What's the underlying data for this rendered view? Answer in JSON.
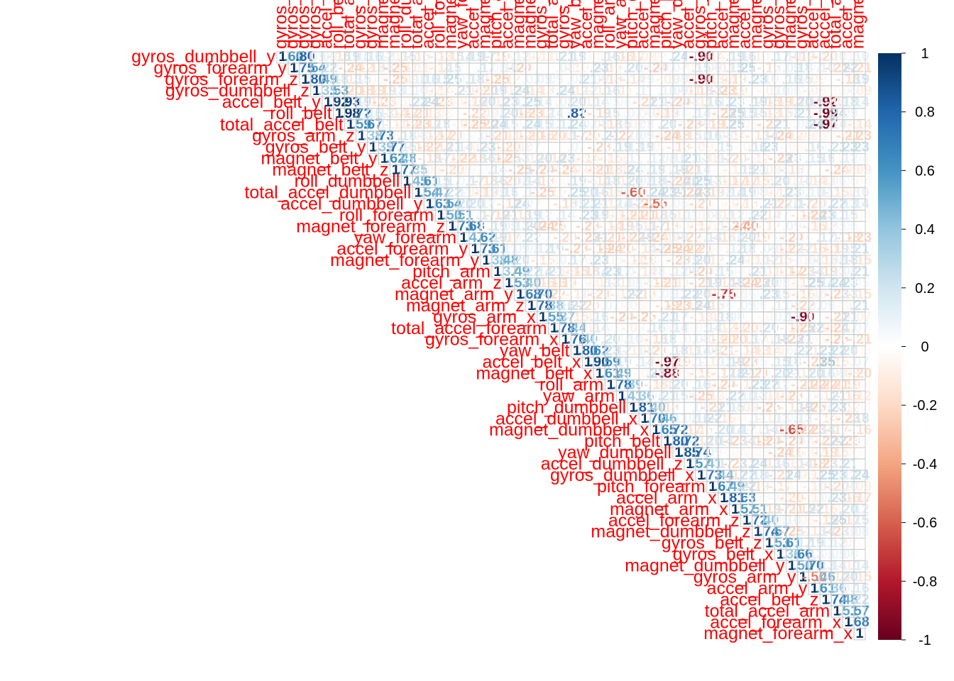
{
  "chart_data": {
    "type": "heatmap",
    "layout": "upper-triangle",
    "title": "",
    "xlabel": "",
    "ylabel": "",
    "legend": {
      "placement": "right",
      "ticks": [
        "1",
        "0.8",
        "0.6",
        "0.4",
        "0.2",
        "0",
        "-0.2",
        "-0.4",
        "-0.6",
        "-0.8",
        "-1"
      ]
    },
    "color_scale": {
      "min": -1,
      "max": 1,
      "low": "#67001f",
      "mid": "#ffffff",
      "high": "#053061"
    },
    "variables": [
      "gyros_dumbbell_y",
      "gyros_forearm_y",
      "gyros_forearm_z",
      "gyros_dumbbell_z",
      "accel_belt_y",
      "roll_belt",
      "total_accel_belt",
      "gyros_arm_z",
      "gyros_belt_y",
      "magnet_belt_y",
      "magnet_belt_z",
      "roll_dumbbell",
      "total_accel_dumbbell",
      "accel_dumbbell_y",
      "roll_forearm",
      "magnet_forearm_z",
      "yaw_forearm",
      "accel_forearm_y",
      "magnet_forearm_y",
      "pitch_arm",
      "accel_arm_z",
      "magnet_arm_y",
      "magnet_arm_z",
      "gyros_arm_x",
      "total_accel_forearm",
      "gyros_forearm_x",
      "yaw_belt",
      "accel_belt_x",
      "magnet_belt_x",
      "roll_arm",
      "yaw_arm",
      "pitch_dumbbell",
      "accel_dumbbell_x",
      "magnet_dumbbell_x",
      "pitch_belt",
      "yaw_dumbbell",
      "accel_dumbbell_z",
      "gyros_dumbbell_x",
      "pitch_forearm",
      "accel_arm_x",
      "magnet_arm_x",
      "accel_forearm_z",
      "magnet_dumbbell_z",
      "gyros_belt_z",
      "gyros_belt_x",
      "magnet_dumbbell_y",
      "gyros_arm_y",
      "accel_arm_y",
      "accel_belt_z",
      "total_accel_arm",
      "accel_forearm_x",
      "magnet_forearm_x"
    ],
    "highlights": [
      {
        "row": "gyros_dumbbell_y",
        "col": "gyros_forearm_y",
        "value": 0.6
      },
      {
        "row": "gyros_forearm_y",
        "col": "gyros_forearm_z",
        "value": 0.75
      },
      {
        "row": "gyros_forearm_z",
        "col": "gyros_dumbbell_z",
        "value": 0.8
      },
      {
        "row": "accel_belt_y",
        "col": "roll_belt",
        "value": 0.92
      },
      {
        "row": "accel_belt_y",
        "col": "total_accel_belt",
        "value": 0.93
      },
      {
        "row": "roll_belt",
        "col": "total_accel_belt",
        "value": 0.98
      },
      {
        "row": "roll_belt",
        "col": "accel_belt_z",
        "value": -0.99
      },
      {
        "row": "total_accel_belt",
        "col": "accel_belt_z",
        "value": -0.97
      },
      {
        "row": "accel_belt_y",
        "col": "accel_belt_z",
        "value": -0.92
      },
      {
        "row": "yaw_belt",
        "col": "accel_belt_x",
        "value": 0.8
      },
      {
        "row": "accel_belt_x",
        "col": "magnet_belt_x",
        "value": 0.9
      },
      {
        "row": "pitch_dumbbell",
        "col": "accel_dumbbell_x",
        "value": 0.81
      },
      {
        "row": "accel_dumbbell_x",
        "col": "magnet_dumbbell_x",
        "value": 0.7
      },
      {
        "row": "pitch_belt",
        "col": "yaw_dumbbell",
        "value": 0.8
      },
      {
        "row": "yaw_dumbbell",
        "col": "accel_dumbbell_z",
        "value": 0.85
      },
      {
        "row": "accel_arm_x",
        "col": "magnet_arm_x",
        "value": 0.81
      },
      {
        "row": "gyros_arm_y",
        "col": "accel_arm_y",
        "value": -0.5
      },
      {
        "row": "accel_forearm_x",
        "col": "magnet_forearm_x",
        "value": 0.68
      },
      {
        "row": "gyros_dumbbell_y",
        "col": "gyros_dumbbell_x",
        "value": -0.9
      },
      {
        "row": "gyros_forearm_z",
        "col": "gyros_dumbbell_x",
        "value": -0.9
      },
      {
        "row": "accel_belt_x",
        "col": "pitch_belt",
        "value": -0.97
      },
      {
        "row": "magnet_belt_x",
        "col": "pitch_belt",
        "value": -0.88
      },
      {
        "row": "magnet_arm_y",
        "col": "accel_arm_x",
        "value": -0.75
      },
      {
        "row": "magnet_dumbbell_x",
        "col": "magnet_dumbbell_y",
        "value": -0.65
      },
      {
        "row": "gyros_arm_x",
        "col": "gyros_arm_y",
        "value": -0.9
      },
      {
        "row": "total_accel_dumbbell",
        "col": "pitch_dumbbell",
        "value": -0.6
      },
      {
        "row": "accel_dumbbell_y",
        "col": "magnet_dumbbell_x",
        "value": -0.55
      },
      {
        "row": "accel_belt_x",
        "col": "accel_belt_z",
        "value": 0.35
      },
      {
        "row": "roll_belt",
        "col": "yaw_belt",
        "value": 0.82
      },
      {
        "row": "magnet_forearm_z",
        "col": "accel_forearm_z",
        "value": -0.4
      }
    ]
  }
}
